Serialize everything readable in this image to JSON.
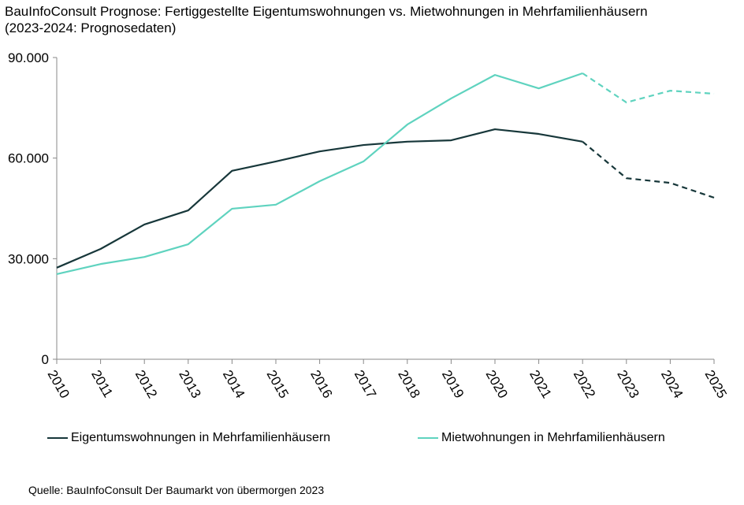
{
  "chart_data": {
    "type": "line",
    "title": "BauInfoConsult Prognose: Fertiggestellte Eigentumswohnungen vs. Mietwohnungen in Mehrfamilienhäusern",
    "subtitle": "(2023-2024: Prognosedaten)",
    "xlabel": "",
    "ylabel": "",
    "categories": [
      "2010",
      "2011",
      "2012",
      "2013",
      "2014",
      "2015",
      "2016",
      "2017",
      "2018",
      "2019",
      "2020",
      "2021",
      "2022",
      "2023",
      "2024",
      "2025"
    ],
    "ylim": [
      0,
      90000
    ],
    "yticks": [
      0,
      30000,
      60000,
      90000
    ],
    "ytick_labels": [
      "0",
      "30.000",
      "60.000",
      "90.000"
    ],
    "grid": false,
    "legend_placement": "bottom",
    "forecast_from": "2022",
    "series": [
      {
        "name": "Eigentumswohnungen in Mehrfamilienhäusern",
        "color": "#17373a",
        "values": [
          27300,
          32900,
          40200,
          44400,
          56200,
          59000,
          62000,
          63900,
          64900,
          65300,
          68600,
          67200,
          64900,
          54000,
          52600,
          48200
        ]
      },
      {
        "name": "Mietwohnungen in Mehrfamilienhäusern",
        "color": "#5fd3bf",
        "values": [
          25400,
          28400,
          30500,
          34300,
          44900,
          46100,
          53100,
          59000,
          70000,
          77800,
          84800,
          80800,
          85300,
          76600,
          80100,
          79200
        ]
      }
    ]
  },
  "source": "Quelle:  BauInfoConsult  Der Baumarkt von übermorgen 2023"
}
